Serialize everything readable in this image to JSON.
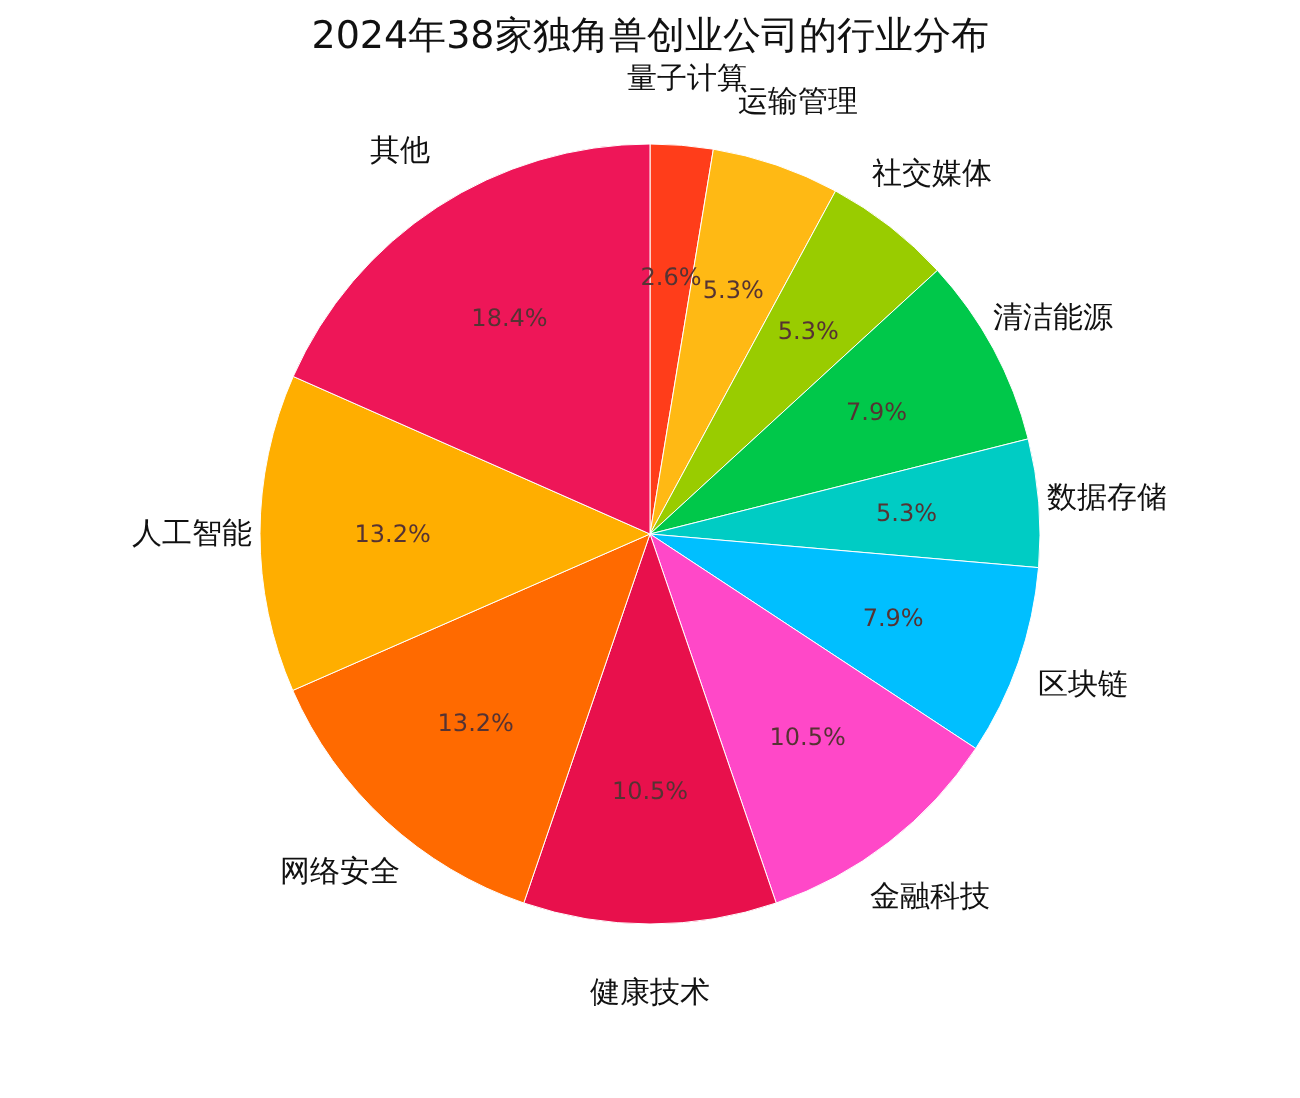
{
  "chart_data": {
    "type": "pie",
    "title": "2024年38家独角兽创业公司的行业分布",
    "categories": [
      "量子计算",
      "运输管理",
      "社交媒体",
      "清洁能源",
      "数据存储",
      "区块链",
      "金融科技",
      "健康技术",
      "网络安全",
      "人工智能",
      "其他"
    ],
    "values": [
      2.6,
      5.3,
      5.3,
      7.9,
      5.3,
      7.9,
      10.5,
      10.5,
      13.2,
      13.2,
      18.4
    ],
    "value_labels": [
      "2.6%",
      "5.3%",
      "5.3%",
      "7.9%",
      "5.3%",
      "7.9%",
      "10.5%",
      "10.5%",
      "13.2%",
      "13.2%",
      "18.4%"
    ],
    "colors": [
      "#ff3d1a",
      "#ffb914",
      "#99cc00",
      "#00c84a",
      "#00ccc4",
      "#00bfff",
      "#ff48c8",
      "#e8104c",
      "#ff6a00",
      "#ffae00",
      "#ee1658"
    ],
    "legend": false
  }
}
